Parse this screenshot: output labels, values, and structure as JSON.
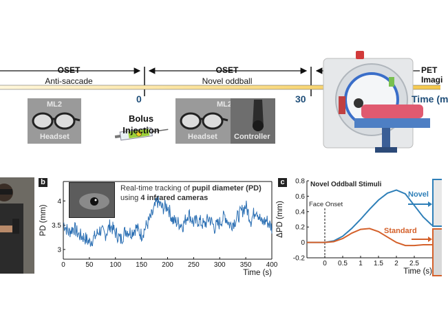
{
  "timeline": {
    "segments": [
      {
        "title": "OSET",
        "subtitle": "Anti-saccade"
      },
      {
        "title": "OSET",
        "subtitle": "Novel oddball"
      },
      {
        "title": "PET",
        "subtitle": "Imagi"
      }
    ],
    "ticks": [
      "0",
      "30"
    ],
    "time_label": "Time (m",
    "bolus_line1": "Bolus",
    "bolus_line2": "Injection",
    "images": [
      {
        "top_label": "ML2",
        "bottom_label": "Headset"
      },
      {
        "top_label": "ML2",
        "bottom_label": "Headset"
      },
      {
        "top_label": "",
        "bottom_label": "Controller"
      }
    ]
  },
  "panel_b": {
    "letter": "b",
    "caption_pre": "Real-time tracking of ",
    "caption_bold": "pupil diameter (PD)",
    "caption_line2_pre": "using ",
    "caption_line2_bold": "4 infrared cameras"
  },
  "panel_c": {
    "letter": "c",
    "title": "Novel Oddball Stimuli",
    "onset_label": "Face Onset"
  },
  "chart_data": [
    {
      "type": "line",
      "panel": "b",
      "title": "",
      "xlabel": "Time (s)",
      "ylabel": "PD (mm)",
      "xlim": [
        0,
        400
      ],
      "ylim": [
        2.8,
        4.4
      ],
      "xticks": [
        0,
        50,
        100,
        150,
        200,
        250,
        300,
        350,
        400
      ],
      "yticks": [
        3,
        3.5,
        4
      ],
      "grid": false,
      "series": [
        {
          "color": "#2b6fb3",
          "x": [
            0,
            10,
            20,
            30,
            40,
            50,
            60,
            70,
            80,
            90,
            100,
            110,
            120,
            130,
            140,
            150,
            160,
            170,
            180,
            190,
            200,
            210,
            220,
            230,
            240,
            250,
            260,
            270,
            280,
            290,
            300,
            310,
            320,
            330,
            340,
            350,
            360,
            370,
            380,
            390,
            400
          ],
          "y": [
            3.55,
            3.35,
            3.45,
            3.3,
            3.25,
            3.15,
            3.25,
            3.4,
            3.3,
            3.5,
            3.35,
            3.2,
            3.4,
            3.35,
            3.45,
            3.3,
            3.5,
            3.7,
            4.0,
            3.85,
            3.9,
            3.6,
            3.55,
            3.5,
            3.75,
            3.55,
            3.6,
            3.5,
            3.65,
            3.45,
            3.55,
            3.7,
            3.5,
            3.6,
            3.75,
            3.9,
            3.6,
            3.85,
            3.55,
            3.6,
            3.45
          ]
        }
      ]
    },
    {
      "type": "line",
      "panel": "c",
      "title": "",
      "xlabel": "Time (s)",
      "ylabel": "ΔPD (mm)",
      "xlim": [
        -0.5,
        3
      ],
      "ylim": [
        -0.2,
        0.8
      ],
      "xticks": [
        0,
        0.5,
        1,
        1.5,
        2,
        2.5
      ],
      "yticks": [
        -0.2,
        0,
        0.2,
        0.4,
        0.6,
        0.8
      ],
      "series": [
        {
          "name": "Novel",
          "color": "#2e7fb8",
          "x": [
            -0.5,
            0,
            0.25,
            0.5,
            0.75,
            1.0,
            1.25,
            1.5,
            1.75,
            2.0,
            2.25,
            2.5,
            2.75,
            3.0
          ],
          "y": [
            0,
            0,
            0.02,
            0.08,
            0.18,
            0.3,
            0.43,
            0.55,
            0.64,
            0.68,
            0.63,
            0.48,
            0.33,
            0.22
          ]
        },
        {
          "name": "Standard",
          "color": "#d4602a",
          "x": [
            -0.5,
            0,
            0.25,
            0.5,
            0.75,
            1.0,
            1.25,
            1.5,
            1.75,
            2.0,
            2.25,
            2.5,
            2.75,
            3.0
          ],
          "y": [
            0,
            0,
            0.01,
            0.05,
            0.12,
            0.17,
            0.18,
            0.14,
            0.07,
            0.0,
            -0.04,
            -0.04,
            -0.03,
            -0.03
          ]
        }
      ]
    }
  ]
}
